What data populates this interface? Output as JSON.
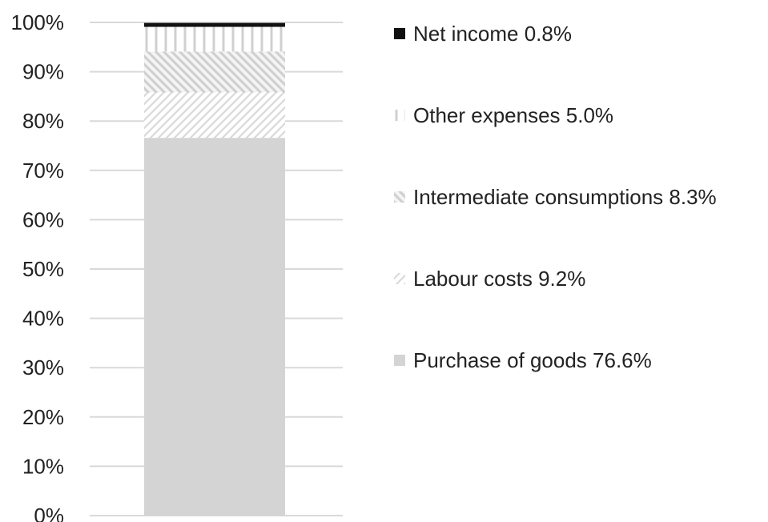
{
  "chart_data": {
    "type": "bar",
    "stacked": true,
    "categories": [
      ""
    ],
    "ylim": [
      0,
      100
    ],
    "y_ticks": [
      "0%",
      "10%",
      "20%",
      "30%",
      "40%",
      "50%",
      "60%",
      "70%",
      "80%",
      "90%",
      "100%"
    ],
    "grid": true,
    "legend_position": "right",
    "series": [
      {
        "key": "purchase",
        "name": "Purchase of goods 76.6%",
        "values": [
          76.6
        ],
        "pattern": "solid-light-gray",
        "color": "#d4d4d4"
      },
      {
        "key": "labour",
        "name": "Labour costs 9.2%",
        "values": [
          9.2
        ],
        "pattern": "diagonal-hatch-down",
        "color": "#d9d9d9"
      },
      {
        "key": "intermediate",
        "name": "Intermediate consumptions 8.3%",
        "values": [
          8.3
        ],
        "pattern": "diagonal-hatch-up",
        "color": "#cfcfcf"
      },
      {
        "key": "other",
        "name": "Other expenses 5.0%",
        "values": [
          5.0
        ],
        "pattern": "vertical-lines",
        "color": "#d0d0d0"
      },
      {
        "key": "net",
        "name": "Net income 0.8%",
        "values": [
          0.8
        ],
        "pattern": "solid-black",
        "color": "#111111"
      }
    ]
  }
}
